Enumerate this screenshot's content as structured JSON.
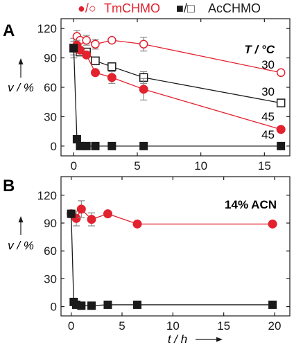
{
  "legend": {
    "red_symbols": "●/○",
    "red_label": "TmCHMO",
    "black_symbols": "■/□",
    "black_label": "AcCHMO"
  },
  "colors": {
    "red": "#e2222e",
    "black": "#1a1a1a",
    "gray_line": "#888888"
  },
  "chart_data": [
    {
      "type": "scatter",
      "panel_label": "A",
      "annotation": "T / °C",
      "ylabel": "v / %",
      "xlim": [
        -1,
        17
      ],
      "ylim": [
        -10,
        130
      ],
      "xticks": [
        0,
        5,
        10,
        15
      ],
      "yticks": [
        0,
        30,
        60,
        90,
        120
      ],
      "series": [
        {
          "name": "TmCHMO",
          "temp_label": "30",
          "marker": "circle-open",
          "color": "red",
          "x": [
            0,
            0.25,
            0.5,
            1,
            1.7,
            3,
            5.5,
            16.3
          ],
          "y": [
            100,
            112,
            108,
            108,
            104,
            108,
            104,
            75
          ],
          "err": [
            10,
            6,
            0,
            5,
            5,
            0,
            7,
            0
          ]
        },
        {
          "name": "AcCHMO",
          "temp_label": "30",
          "marker": "square-open",
          "color": "black",
          "x": [
            0,
            0.25,
            0.5,
            1,
            1.7,
            3,
            5.5,
            16.3
          ],
          "y": [
            100,
            100,
            96,
            96,
            87,
            81,
            70,
            44
          ],
          "err": [
            0,
            0,
            0,
            0,
            0,
            4,
            6,
            0
          ]
        },
        {
          "name": "TmCHMO",
          "temp_label": "45",
          "marker": "circle-filled",
          "color": "red",
          "x": [
            0,
            0.25,
            0.5,
            1,
            1.7,
            3,
            5.5,
            16.3
          ],
          "y": [
            100,
            103,
            98,
            93,
            75,
            70,
            58,
            17
          ],
          "err": [
            7,
            5,
            0,
            0,
            0,
            6,
            11,
            0
          ]
        },
        {
          "name": "AcCHMO",
          "temp_label": "45",
          "marker": "square-filled",
          "color": "black",
          "x": [
            0,
            0.25,
            0.5,
            1,
            1.7,
            3,
            5.5,
            16.3
          ],
          "y": [
            100,
            7,
            0,
            0,
            0,
            0,
            0,
            0
          ],
          "err": [
            0,
            0,
            0,
            0,
            0,
            0,
            0,
            0
          ]
        }
      ]
    },
    {
      "type": "scatter",
      "panel_label": "B",
      "annotation": "14% ACN",
      "ylabel": "v / %",
      "xlabel": "t / h",
      "xlim": [
        -1,
        21.5
      ],
      "ylim": [
        -10,
        140
      ],
      "xticks": [
        0,
        5,
        10,
        15,
        20
      ],
      "yticks": [
        0,
        30,
        60,
        90,
        120
      ],
      "series": [
        {
          "name": "TmCHMO",
          "marker": "circle-filled",
          "color": "red",
          "x": [
            0,
            0.5,
            1,
            2,
            3.6,
            6.5,
            19.8
          ],
          "y": [
            100,
            95,
            105,
            94,
            100,
            89,
            89
          ],
          "err": [
            0,
            8,
            9,
            7,
            0,
            0,
            0
          ]
        },
        {
          "name": "AcCHMO",
          "marker": "square-filled",
          "color": "black",
          "x": [
            0,
            0.25,
            0.5,
            1,
            2,
            3.6,
            6.5,
            19.8
          ],
          "y": [
            100,
            5,
            2,
            1,
            1,
            2,
            2,
            2
          ],
          "err": [
            0,
            0,
            0,
            0,
            0,
            0,
            0,
            0
          ]
        }
      ]
    }
  ]
}
